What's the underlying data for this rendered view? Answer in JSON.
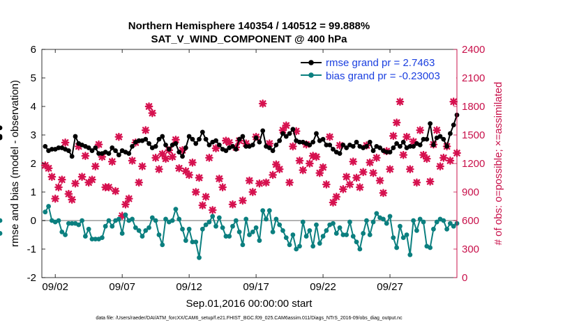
{
  "chart_data": {
    "type": "line",
    "title_line1": "Northern Hemisphere 140354 / 140512 = 99.888%",
    "title_line2": "SAT_V_WIND_COMPONENT @ 400 hPa",
    "xlabel": "Sep.01,2016 00:00:00 start",
    "ylabel_left": "rmse and bias (model - observation)",
    "ylabel_right": "# of obs: o=possible; ×=assimilated",
    "xlim": [
      0.5,
      31.5
    ],
    "ylim_left": [
      -2,
      6
    ],
    "ylim_right": [
      0,
      2400
    ],
    "x_tick_values": [
      1.5,
      6.5,
      11.5,
      16.5,
      21.5,
      26.5
    ],
    "x_tick_labels": [
      "09/02",
      "09/07",
      "09/12",
      "09/17",
      "09/22",
      "09/27"
    ],
    "y_left_ticks": [
      -2,
      -1,
      0,
      1,
      2,
      3,
      4,
      5,
      6
    ],
    "y_right_ticks": [
      0,
      300,
      600,
      900,
      1200,
      1500,
      1800,
      2100,
      2400
    ],
    "legend_location": "top-right",
    "legend": [
      {
        "label": "rmse grand pr = 2.7463",
        "color": "#000000"
      },
      {
        "label": "bias grand pr = -0.23003",
        "color": "#0b7f7f"
      }
    ],
    "colors": {
      "rmse": "#000000",
      "bias": "#0b7f7f",
      "obs": "#d6114f",
      "zero_line": "#b3b3b3",
      "right_axis": "#c8104a"
    },
    "times": [
      0.75,
      1.0,
      1.25,
      1.5,
      1.75,
      2.0,
      2.25,
      2.5,
      2.75,
      3.0,
      3.25,
      3.5,
      3.75,
      4.0,
      4.25,
      4.5,
      4.75,
      5.0,
      5.25,
      5.5,
      5.75,
      6.0,
      6.25,
      6.5,
      6.75,
      7.0,
      7.25,
      7.5,
      7.75,
      8.0,
      8.25,
      8.5,
      8.75,
      9.0,
      9.25,
      9.5,
      9.75,
      10.0,
      10.25,
      10.5,
      10.75,
      11.0,
      11.25,
      11.5,
      11.75,
      12.0,
      12.25,
      12.5,
      12.75,
      13.0,
      13.25,
      13.5,
      13.75,
      14.0,
      14.25,
      14.5,
      14.75,
      15.0,
      15.25,
      15.5,
      15.75,
      16.0,
      16.25,
      16.5,
      16.75,
      17.0,
      17.25,
      17.5,
      17.75,
      18.0,
      18.25,
      18.5,
      18.75,
      19.0,
      19.25,
      19.5,
      19.75,
      20.0,
      20.25,
      20.5,
      20.75,
      21.0,
      21.25,
      21.5,
      21.75,
      22.0,
      22.25,
      22.5,
      22.75,
      23.0,
      23.25,
      23.5,
      23.75,
      24.0,
      24.25,
      24.5,
      24.75,
      25.0,
      25.25,
      25.5,
      25.75,
      26.0,
      26.25,
      26.5,
      26.75,
      27.0,
      27.25,
      27.5,
      27.75,
      28.0,
      28.25,
      28.5,
      28.75,
      29.0,
      29.25,
      29.5,
      29.75,
      30.0,
      30.25,
      30.5,
      30.75,
      31.0,
      31.25,
      31.5
    ],
    "rmse": [
      2.6,
      2.45,
      2.5,
      2.5,
      2.55,
      2.55,
      2.5,
      2.45,
      2.25,
      2.95,
      2.7,
      2.65,
      2.6,
      2.55,
      2.45,
      2.55,
      2.35,
      2.35,
      2.4,
      2.35,
      2.55,
      2.45,
      2.3,
      2.45,
      2.4,
      2.35,
      2.6,
      2.75,
      2.8,
      2.8,
      2.85,
      2.7,
      2.55,
      2.6,
      2.85,
      2.95,
      2.65,
      2.5,
      2.65,
      2.7,
      2.4,
      2.25,
      2.55,
      2.95,
      2.85,
      2.7,
      2.85,
      3.1,
      2.85,
      2.65,
      2.75,
      2.8,
      2.65,
      2.5,
      2.45,
      2.55,
      2.6,
      2.5,
      2.85,
      2.95,
      2.6,
      2.6,
      2.65,
      2.9,
      2.75,
      3.15,
      2.6,
      2.55,
      2.45,
      2.65,
      2.8,
      3.05,
      2.95,
      3.05,
      3.2,
      2.8,
      2.75,
      2.75,
      2.7,
      2.65,
      2.75,
      3.05,
      2.8,
      2.85,
      2.65,
      2.65,
      2.5,
      2.4,
      2.35,
      2.65,
      2.55,
      2.65,
      2.6,
      2.75,
      2.6,
      2.55,
      2.6,
      2.75,
      2.45,
      2.6,
      2.55,
      2.45,
      2.4,
      2.4,
      2.55,
      2.7,
      2.6,
      2.75,
      2.55,
      2.6,
      2.6,
      2.7,
      2.65,
      2.85,
      2.85,
      3.4,
      2.65,
      2.9,
      2.95,
      2.85,
      2.6,
      3.05,
      3.35,
      3.7,
      3.25,
      2.9,
      2.95
    ],
    "bias": [
      0.3,
      0.5,
      0.0,
      -0.05,
      0.0,
      -0.4,
      -0.5,
      -0.1,
      -0.1,
      -0.1,
      -0.15,
      0.0,
      -0.55,
      -0.3,
      -0.65,
      -0.65,
      -0.65,
      -0.6,
      -0.2,
      0.0,
      -0.2,
      0.0,
      0.05,
      -0.45,
      0.2,
      0.0,
      0.05,
      -0.25,
      -0.35,
      -0.55,
      -0.35,
      -0.25,
      0.1,
      0.0,
      -0.5,
      -0.85,
      0.05,
      -0.05,
      0.0,
      0.4,
      0.05,
      -0.3,
      -0.7,
      -0.3,
      -0.75,
      -0.75,
      -1.3,
      -0.3,
      -0.15,
      -0.05,
      0.15,
      -0.2,
      0.1,
      -0.25,
      -0.55,
      -0.55,
      -0.2,
      0.0,
      -0.4,
      -0.85,
      0.05,
      -0.5,
      -0.4,
      -0.25,
      -0.7,
      0.35,
      0.05,
      0.35,
      -0.4,
      0.05,
      -0.15,
      -0.35,
      -0.6,
      -0.85,
      -0.5,
      -1.0,
      -0.9,
      -0.05,
      -0.55,
      -0.35,
      -0.9,
      -0.15,
      -0.8,
      -0.55,
      -0.35,
      -0.15,
      -0.1,
      -0.45,
      -0.25,
      -0.5,
      -0.5,
      -0.05,
      -0.55,
      -0.75,
      -1.0,
      -0.45,
      0.0,
      -0.5,
      -0.05,
      0.25,
      0.1,
      0.05,
      -0.1,
      0.15,
      -0.6,
      -0.95,
      -0.2,
      -0.6,
      -0.5,
      -1.2,
      0.0,
      -0.35,
      0.05,
      -0.05,
      -0.9,
      -0.95,
      -0.3,
      -0.05,
      0.05,
      0.0,
      -0.3,
      -0.1,
      -0.2,
      -0.1,
      -0.45,
      0.0
    ],
    "obs_assimilated": [
      1180,
      1150,
      1060,
      830,
      950,
      1030,
      1420,
      880,
      820,
      990,
      1380,
      1060,
      1280,
      1000,
      1030,
      1170,
      1400,
      1270,
      950,
      950,
      1220,
      910,
      1480,
      650,
      770,
      830,
      1230,
      1420,
      1000,
      1170,
      1550,
      1800,
      1730,
      1260,
      1140,
      1300,
      1250,
      1340,
      1270,
      1450,
      1150,
      1340,
      1120,
      1080,
      1210,
      900,
      1050,
      760,
      850,
      1260,
      710,
      1360,
      1040,
      950,
      1440,
      1420,
      770,
      1370,
      1440,
      810,
      1410,
      1020,
      900,
      1480,
      990,
      1830,
      1000,
      1410,
      1080,
      1190,
      1140,
      1550,
      1600,
      1000,
      1380,
      1540,
      1230,
      1130,
      1400,
      1200,
      1280,
      1270,
      1100,
      1160,
      980,
      1480,
      790,
      850,
      1390,
      930,
      1060,
      980,
      1220,
      1050,
      950,
      1110,
      1390,
      1210,
      1100,
      1260,
      1020,
      890,
      1330,
      1140,
      1490,
      1630,
      1850,
      1290,
      1480,
      1140,
      1430,
      1000,
      1550,
      1290,
      1250,
      1010,
      1400,
      1550,
      1170,
      1260,
      1380,
      1230,
      1850,
      1310,
      1280,
      0
    ]
  },
  "footer": "data file: /Users/raeder/DAI/ATM_forcXX/CAM6_setup/f.e21.FHIST_BGC.f09_025.CAM6assim.011/Diags_NTrS_2016-09/obs_diag_output.nc"
}
